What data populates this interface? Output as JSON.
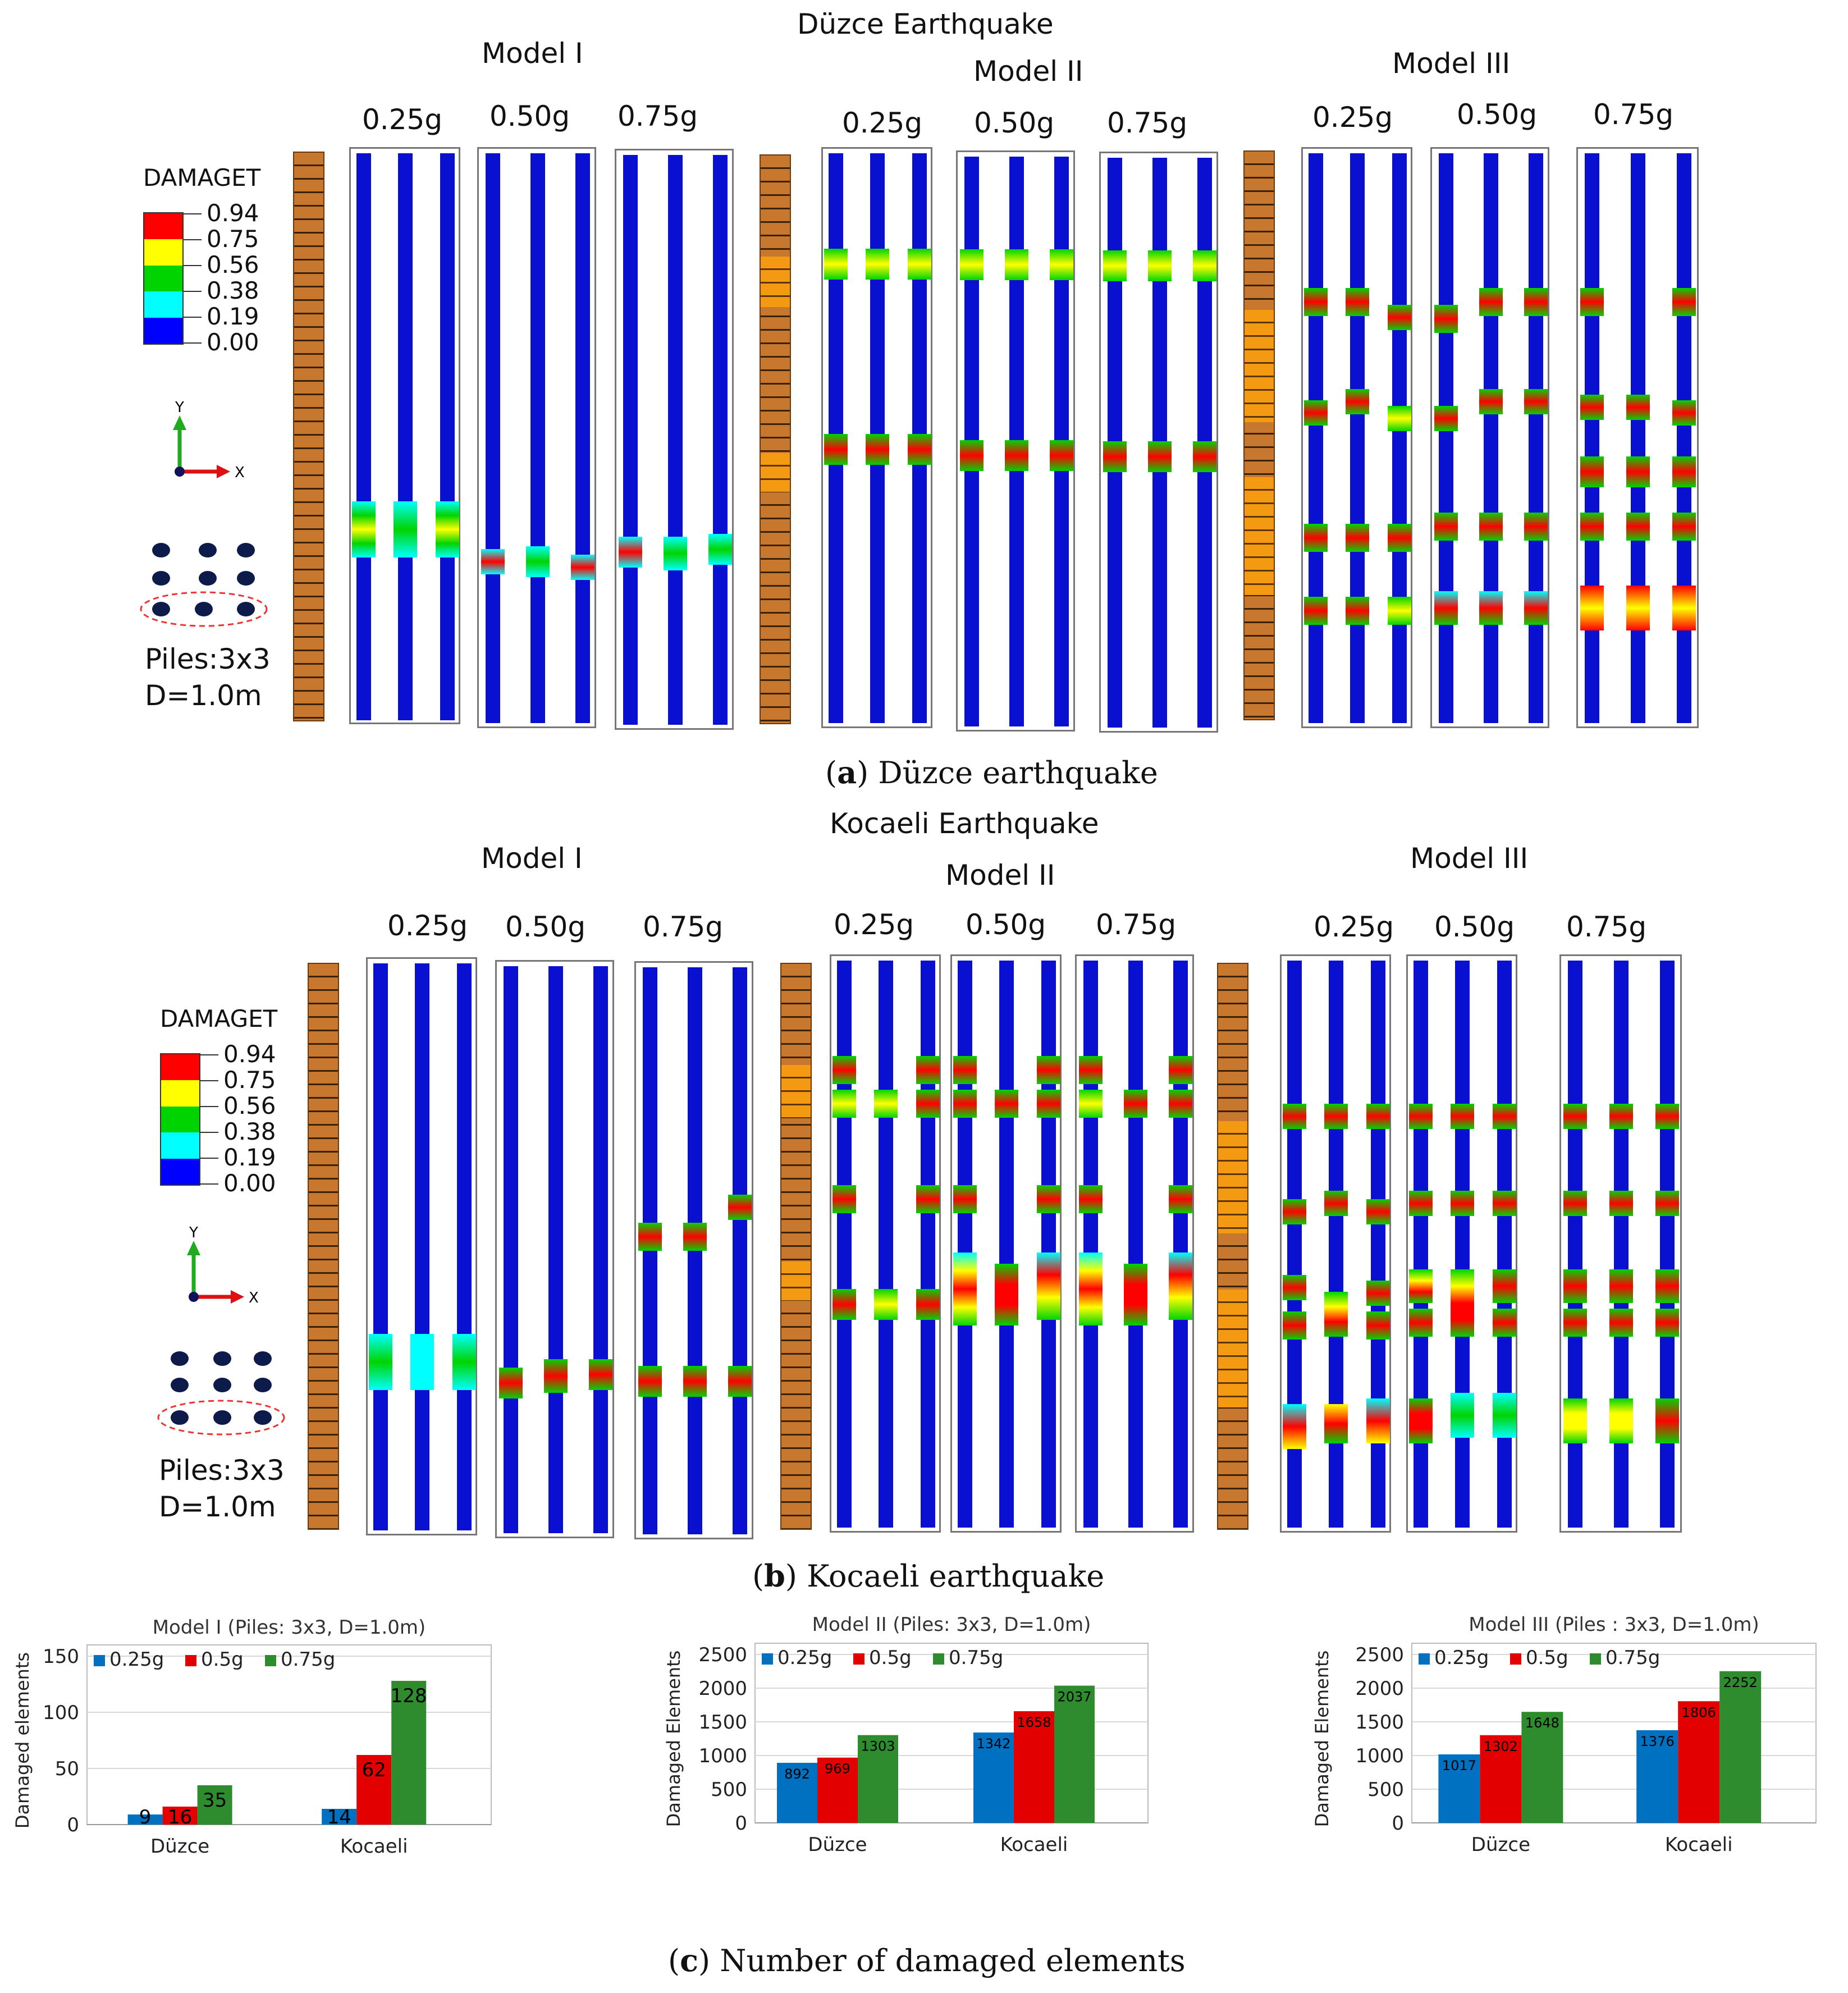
{
  "figure": {
    "panel_a": {
      "title": "Düzce Earthquake",
      "caption_letter": "a",
      "caption_text": "Düzce earthquake",
      "models": [
        {
          "label": "Model I",
          "pga": [
            "0.25g",
            "0.50g",
            "0.75g"
          ]
        },
        {
          "label": "Model II",
          "pga": [
            "0.25g",
            "0.50g",
            "0.75g"
          ]
        },
        {
          "label": "Model III",
          "pga": [
            "0.25g",
            "0.50g",
            "0.75g"
          ]
        }
      ]
    },
    "panel_b": {
      "title": "Kocaeli Earthquake",
      "caption_letter": "b",
      "caption_text": "Kocaeli earthquake",
      "models": [
        {
          "label": "Model I",
          "pga": [
            "0.25g",
            "0.50g",
            "0.75g"
          ]
        },
        {
          "label": "Model II",
          "pga": [
            "0.25g",
            "0.50g",
            "0.75g"
          ]
        },
        {
          "label": "Model III",
          "pga": [
            "0.25g",
            "0.50g",
            "0.75g"
          ]
        }
      ]
    },
    "panel_c": {
      "caption_letter": "c",
      "caption_text": "Number of damaged elements"
    },
    "legend": {
      "title": "DAMAGET",
      "values": [
        "0.94",
        "0.75",
        "0.56",
        "0.38",
        "0.19",
        "0.00"
      ],
      "colors": [
        "#ff0000",
        "#ffff00",
        "#00d400",
        "#00ffff",
        "#0000ff"
      ]
    },
    "axes_label": {
      "y": "Y",
      "x": "X"
    },
    "pile_info": {
      "piles": "Piles:3x3",
      "diameter": "D=1.0m"
    }
  },
  "colors": {
    "pile": "#0a10d0",
    "soil": "#c8772e",
    "soil_weak": "#f39a12",
    "series_025": "#0070c0",
    "series_05": "#e30000",
    "series_075": "#2e8b2e"
  },
  "chart_data": [
    {
      "type": "bar",
      "title": "Model I (Piles: 3x3, D=1.0m)",
      "ylabel": "Damaged elements",
      "xlabel": "",
      "categories": [
        "Düzce",
        "Kocaeli"
      ],
      "ylim": [
        0,
        150
      ],
      "yticks": [
        "0",
        "50",
        "100",
        "150"
      ],
      "series": [
        {
          "name": "0.25g",
          "values": [
            9,
            14
          ]
        },
        {
          "name": "0.5g",
          "values": [
            16,
            62
          ]
        },
        {
          "name": "0.75g",
          "values": [
            35,
            128
          ]
        }
      ],
      "data_labels": [
        [
          "9",
          "14"
        ],
        [
          "16",
          "62"
        ],
        [
          "35",
          "128"
        ]
      ]
    },
    {
      "type": "bar",
      "title": "Model II (Piles: 3x3, D=1.0m)",
      "ylabel": "Damaged Elements",
      "xlabel": "",
      "categories": [
        "Düzce",
        "Kocaeli"
      ],
      "ylim": [
        0,
        2500
      ],
      "yticks": [
        "0",
        "500",
        "1000",
        "1500",
        "2000",
        "2500"
      ],
      "series": [
        {
          "name": "0.25g",
          "values": [
            892,
            1342
          ]
        },
        {
          "name": "0.5g",
          "values": [
            969,
            1658
          ]
        },
        {
          "name": "0.75g",
          "values": [
            1303,
            2037
          ]
        }
      ],
      "data_labels": [
        [
          "892",
          "1342"
        ],
        [
          "969",
          "1658"
        ],
        [
          "1303",
          "2037"
        ]
      ]
    },
    {
      "type": "bar",
      "title": "Model III (Piles : 3x3, D=1.0m)",
      "ylabel": "Damaged Elements",
      "xlabel": "",
      "categories": [
        "Düzce",
        "Kocaeli"
      ],
      "ylim": [
        0,
        2500
      ],
      "yticks": [
        "0",
        "500",
        "1000",
        "1500",
        "2000",
        "2500"
      ],
      "series": [
        {
          "name": "0.25g",
          "values": [
            1017,
            1376
          ]
        },
        {
          "name": "0.5g",
          "values": [
            1302,
            1806
          ]
        },
        {
          "name": "0.75g",
          "values": [
            1648,
            2252
          ]
        }
      ],
      "data_labels": [
        [
          "1017",
          "1376"
        ],
        [
          "1302",
          "1806"
        ],
        [
          "1648",
          "2252"
        ]
      ]
    }
  ]
}
